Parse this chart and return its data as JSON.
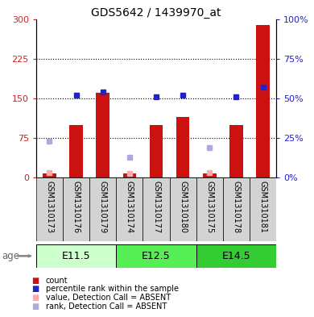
{
  "title": "GDS5642 / 1439970_at",
  "samples": [
    "GSM1310173",
    "GSM1310176",
    "GSM1310179",
    "GSM1310174",
    "GSM1310177",
    "GSM1310180",
    "GSM1310175",
    "GSM1310178",
    "GSM1310181"
  ],
  "age_groups": [
    {
      "label": "E11.5",
      "start": 0,
      "end": 3,
      "color": "#ccffcc"
    },
    {
      "label": "E12.5",
      "start": 3,
      "end": 6,
      "color": "#55ee55"
    },
    {
      "label": "E14.5",
      "start": 6,
      "end": 9,
      "color": "#33cc33"
    }
  ],
  "red_bars": [
    8,
    100,
    160,
    7,
    100,
    115,
    8,
    100,
    288
  ],
  "blue_dots_pct": [
    null,
    52,
    54,
    null,
    51,
    52,
    null,
    51,
    57
  ],
  "pink_dots": [
    10,
    null,
    null,
    8,
    null,
    null,
    10,
    null,
    null
  ],
  "lightblue_dots_pct": [
    23,
    null,
    null,
    13,
    null,
    null,
    19,
    null,
    null
  ],
  "ylim_left": [
    0,
    300
  ],
  "ylim_right": [
    0,
    100
  ],
  "yticks_left": [
    0,
    75,
    150,
    225,
    300
  ],
  "yticks_right": [
    0,
    25,
    50,
    75,
    100
  ],
  "ytick_labels_left": [
    "0",
    "75",
    "150",
    "225",
    "300"
  ],
  "ytick_labels_right": [
    "0%",
    "25%",
    "50%",
    "75%",
    "100%"
  ],
  "bar_color": "#cc1111",
  "blue_color": "#2222cc",
  "pink_color": "#ffaaaa",
  "lightblue_color": "#aaaadd",
  "label_color_left": "#cc2222",
  "label_color_right": "#2222cc",
  "box_gray": "#d3d3d3"
}
